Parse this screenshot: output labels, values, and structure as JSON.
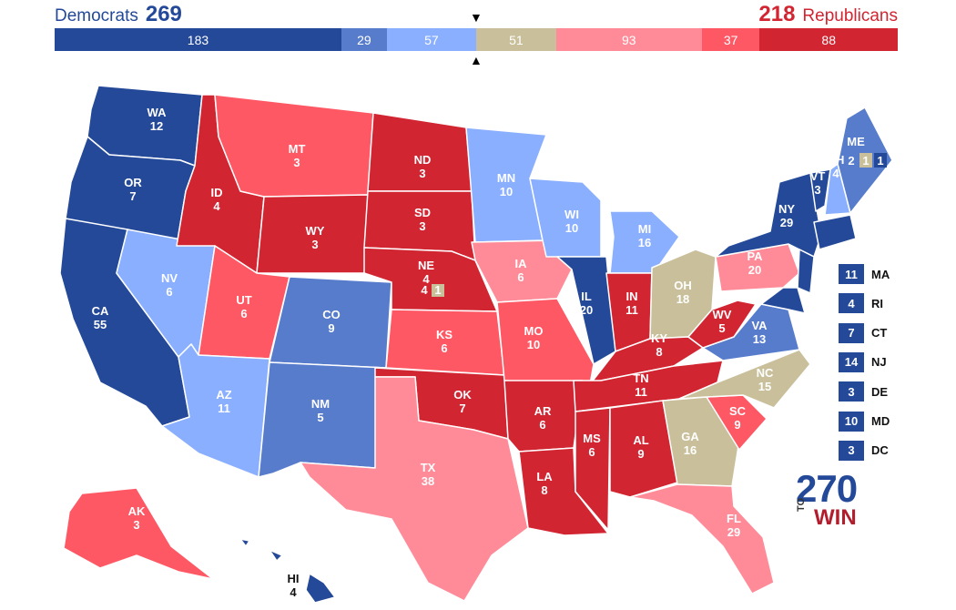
{
  "header": {
    "dem_label": "Democrats",
    "dem_total": "269",
    "rep_total": "218",
    "rep_label": "Republicans"
  },
  "colors": {
    "safe_dem": "#244999",
    "likely_dem": "#577ccc",
    "lean_dem": "#8aafff",
    "tossup": "#c9c09b",
    "lean_rep": "#ff8b98",
    "likely_rep": "#ff5865",
    "safe_rep": "#d22532",
    "border": "#ffffff"
  },
  "bar_segments": [
    {
      "label": "183",
      "value": 183,
      "category": "safe_dem"
    },
    {
      "label": "29",
      "value": 29,
      "category": "likely_dem"
    },
    {
      "label": "57",
      "value": 57,
      "category": "lean_dem"
    },
    {
      "label": "51",
      "value": 51,
      "category": "tossup"
    },
    {
      "label": "93",
      "value": 93,
      "category": "lean_rep"
    },
    {
      "label": "37",
      "value": 37,
      "category": "likely_rep"
    },
    {
      "label": "88",
      "value": 88,
      "category": "safe_rep"
    }
  ],
  "markers": {
    "top": "▼",
    "bottom": "▲"
  },
  "states": [
    {
      "abbr": "WA",
      "ev": "12",
      "category": "safe_dem"
    },
    {
      "abbr": "OR",
      "ev": "7",
      "category": "safe_dem"
    },
    {
      "abbr": "CA",
      "ev": "55",
      "category": "safe_dem"
    },
    {
      "abbr": "NV",
      "ev": "6",
      "category": "lean_dem"
    },
    {
      "abbr": "ID",
      "ev": "4",
      "category": "safe_rep"
    },
    {
      "abbr": "MT",
      "ev": "3",
      "category": "likely_rep"
    },
    {
      "abbr": "WY",
      "ev": "3",
      "category": "safe_rep"
    },
    {
      "abbr": "UT",
      "ev": "6",
      "category": "likely_rep"
    },
    {
      "abbr": "AZ",
      "ev": "11",
      "category": "lean_dem"
    },
    {
      "abbr": "CO",
      "ev": "9",
      "category": "likely_dem"
    },
    {
      "abbr": "NM",
      "ev": "5",
      "category": "likely_dem"
    },
    {
      "abbr": "ND",
      "ev": "3",
      "category": "safe_rep"
    },
    {
      "abbr": "SD",
      "ev": "3",
      "category": "safe_rep"
    },
    {
      "abbr": "NE",
      "ev": "4",
      "category": "safe_rep"
    },
    {
      "abbr": "KS",
      "ev": "6",
      "category": "likely_rep"
    },
    {
      "abbr": "OK",
      "ev": "7",
      "category": "safe_rep"
    },
    {
      "abbr": "TX",
      "ev": "38",
      "category": "lean_rep"
    },
    {
      "abbr": "MN",
      "ev": "10",
      "category": "lean_dem"
    },
    {
      "abbr": "IA",
      "ev": "6",
      "category": "lean_rep"
    },
    {
      "abbr": "MO",
      "ev": "10",
      "category": "likely_rep"
    },
    {
      "abbr": "AR",
      "ev": "6",
      "category": "safe_rep"
    },
    {
      "abbr": "LA",
      "ev": "8",
      "category": "safe_rep"
    },
    {
      "abbr": "WI",
      "ev": "10",
      "category": "lean_dem"
    },
    {
      "abbr": "IL",
      "ev": "20",
      "category": "safe_dem"
    },
    {
      "abbr": "MI",
      "ev": "16",
      "category": "lean_dem"
    },
    {
      "abbr": "IN",
      "ev": "11",
      "category": "safe_rep"
    },
    {
      "abbr": "OH",
      "ev": "18",
      "category": "tossup"
    },
    {
      "abbr": "KY",
      "ev": "8",
      "category": "safe_rep"
    },
    {
      "abbr": "TN",
      "ev": "11",
      "category": "safe_rep"
    },
    {
      "abbr": "MS",
      "ev": "6",
      "category": "safe_rep"
    },
    {
      "abbr": "AL",
      "ev": "9",
      "category": "safe_rep"
    },
    {
      "abbr": "GA",
      "ev": "16",
      "category": "tossup"
    },
    {
      "abbr": "FL",
      "ev": "29",
      "category": "lean_rep"
    },
    {
      "abbr": "SC",
      "ev": "9",
      "category": "likely_rep"
    },
    {
      "abbr": "NC",
      "ev": "15",
      "category": "tossup"
    },
    {
      "abbr": "VA",
      "ev": "13",
      "category": "likely_dem"
    },
    {
      "abbr": "WV",
      "ev": "5",
      "category": "safe_rep"
    },
    {
      "abbr": "PA",
      "ev": "20",
      "category": "lean_rep"
    },
    {
      "abbr": "NY",
      "ev": "29",
      "category": "safe_dem"
    },
    {
      "abbr": "VT",
      "ev": "3",
      "category": "safe_dem"
    },
    {
      "abbr": "NH",
      "ev": "4",
      "category": "lean_dem"
    },
    {
      "abbr": "ME",
      "ev": "",
      "category": "likely_dem"
    },
    {
      "abbr": "AK",
      "ev": "3",
      "category": "likely_rep"
    },
    {
      "abbr": "HI",
      "ev": "4",
      "category": "safe_dem"
    }
  ],
  "split_states": {
    "ne": {
      "statewide": "4",
      "district": "1",
      "district_category": "tossup"
    },
    "me": {
      "statewide": "2",
      "district1": "1",
      "district1_category": "tossup",
      "district2": "1",
      "district2_category": "safe_dem"
    }
  },
  "small_states": [
    {
      "ev": "11",
      "abbr": "MA",
      "category": "safe_dem"
    },
    {
      "ev": "4",
      "abbr": "RI",
      "category": "safe_dem"
    },
    {
      "ev": "7",
      "abbr": "CT",
      "category": "safe_dem"
    },
    {
      "ev": "14",
      "abbr": "NJ",
      "category": "safe_dem"
    },
    {
      "ev": "3",
      "abbr": "DE",
      "category": "safe_dem"
    },
    {
      "ev": "10",
      "abbr": "MD",
      "category": "safe_dem"
    },
    {
      "ev": "3",
      "abbr": "DC",
      "category": "safe_dem"
    }
  ],
  "logo": {
    "number": "270",
    "to": "TO",
    "win": "WIN"
  }
}
